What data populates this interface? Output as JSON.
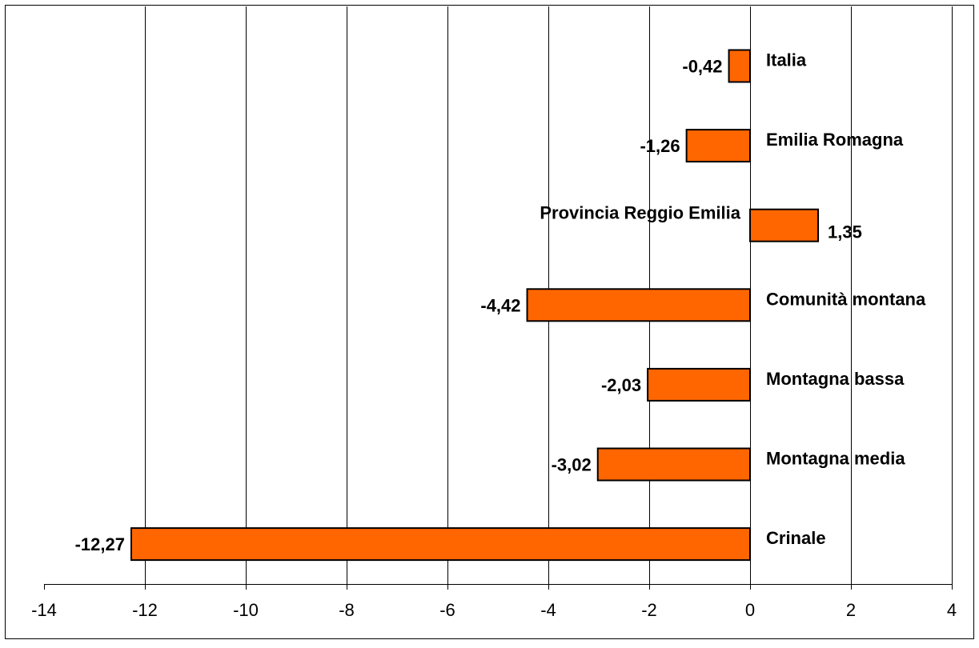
{
  "chart_data": {
    "type": "bar",
    "orientation": "horizontal",
    "categories": [
      "Italia",
      "Emilia Romagna",
      "Provincia Reggio Emilia",
      "Comunità montana",
      "Montagna bassa",
      "Montagna media",
      "Crinale"
    ],
    "values": [
      -0.42,
      -1.26,
      1.35,
      -4.42,
      -2.03,
      -3.02,
      -12.27
    ],
    "value_labels": [
      "-0,42",
      "-1,26",
      "1,35",
      "-4,42",
      "-2,03",
      "-3,02",
      "-12,27"
    ],
    "title": "",
    "xlabel": "",
    "ylabel": "",
    "xlim": [
      -14,
      4
    ],
    "x_ticks": [
      -14,
      -12,
      -10,
      -8,
      -6,
      -4,
      -2,
      0,
      2,
      4
    ],
    "tick_labels": [
      "-14",
      "-12",
      "-10",
      "-8",
      "-6",
      "-4",
      "-2",
      "0",
      "2",
      "4"
    ],
    "grid": "vertical",
    "legend": "none",
    "bar_color": "#FF6600",
    "bar_edge_color": "#000000",
    "grid_color": "#000000"
  }
}
